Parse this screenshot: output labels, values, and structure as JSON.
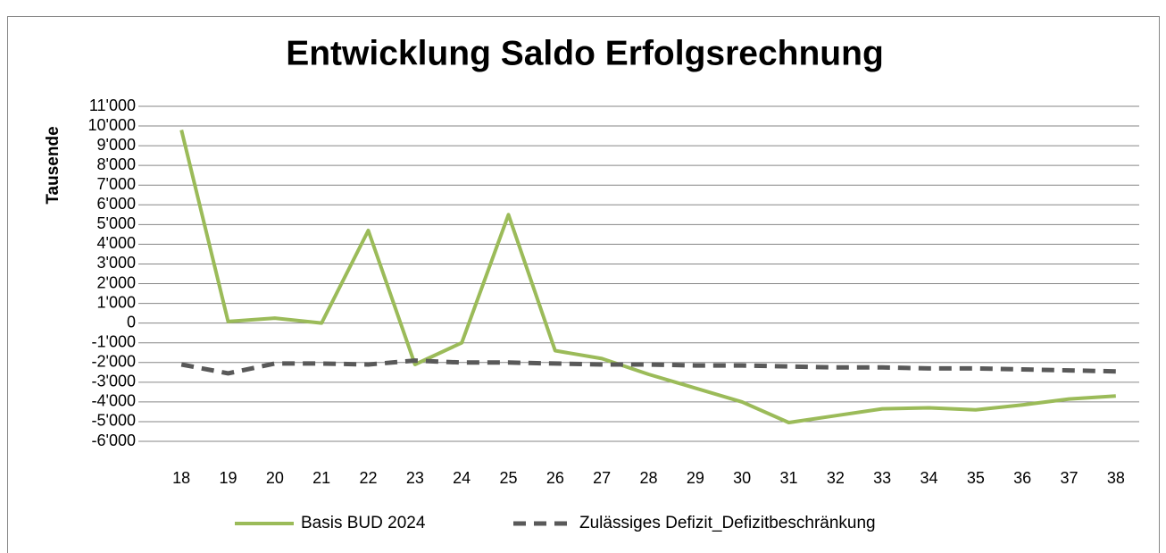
{
  "chart_data": {
    "type": "line",
    "title": "Entwicklung Saldo Erfolgsrechnung",
    "y_label": "Tausende",
    "categories": [
      "18",
      "19",
      "20",
      "21",
      "22",
      "23",
      "24",
      "25",
      "26",
      "27",
      "28",
      "29",
      "30",
      "31",
      "32",
      "33",
      "34",
      "35",
      "36",
      "37",
      "38"
    ],
    "series": [
      {
        "name": "Basis BUD 2024",
        "color": "#9bbb59",
        "dash": false,
        "values": [
          9800,
          80,
          250,
          0,
          4700,
          -2100,
          -1000,
          5500,
          -1400,
          -1800,
          -2600,
          -3300,
          -4000,
          -5050,
          -4700,
          -4350,
          -4300,
          -4400,
          -4150,
          -3850,
          -3700
        ]
      },
      {
        "name": "Zulässiges Defizit_Defizitbeschränkung",
        "color": "#595959",
        "dash": true,
        "values": [
          -2100,
          -2550,
          -2050,
          -2050,
          -2100,
          -1900,
          -2000,
          -2000,
          -2050,
          -2100,
          -2100,
          -2150,
          -2150,
          -2200,
          -2250,
          -2250,
          -2300,
          -2300,
          -2350,
          -2400,
          -2450
        ]
      }
    ],
    "ylim": [
      -6000,
      11000
    ],
    "yticks": [
      {
        "value": -6000,
        "label": "-6'000"
      },
      {
        "value": -5000,
        "label": "-5'000"
      },
      {
        "value": -4000,
        "label": "-4'000"
      },
      {
        "value": -3000,
        "label": "-3'000"
      },
      {
        "value": -2000,
        "label": "-2'000"
      },
      {
        "value": -1000,
        "label": "-1'000"
      },
      0,
      {
        "value": 1000,
        "label": "1'000"
      },
      {
        "value": 2000,
        "label": "2'000"
      },
      {
        "value": 3000,
        "label": "3'000"
      },
      {
        "value": 4000,
        "label": "4'000"
      },
      {
        "value": 5000,
        "label": "5'000"
      },
      {
        "value": 6000,
        "label": "6'000"
      },
      {
        "value": 7000,
        "label": "7'000"
      },
      {
        "value": 8000,
        "label": "8'000"
      },
      {
        "value": 9000,
        "label": "9'000"
      },
      {
        "value": 10000,
        "label": "10'000"
      },
      {
        "value": 11000,
        "label": "11'000"
      }
    ],
    "grid": true,
    "legend": "bottom"
  }
}
